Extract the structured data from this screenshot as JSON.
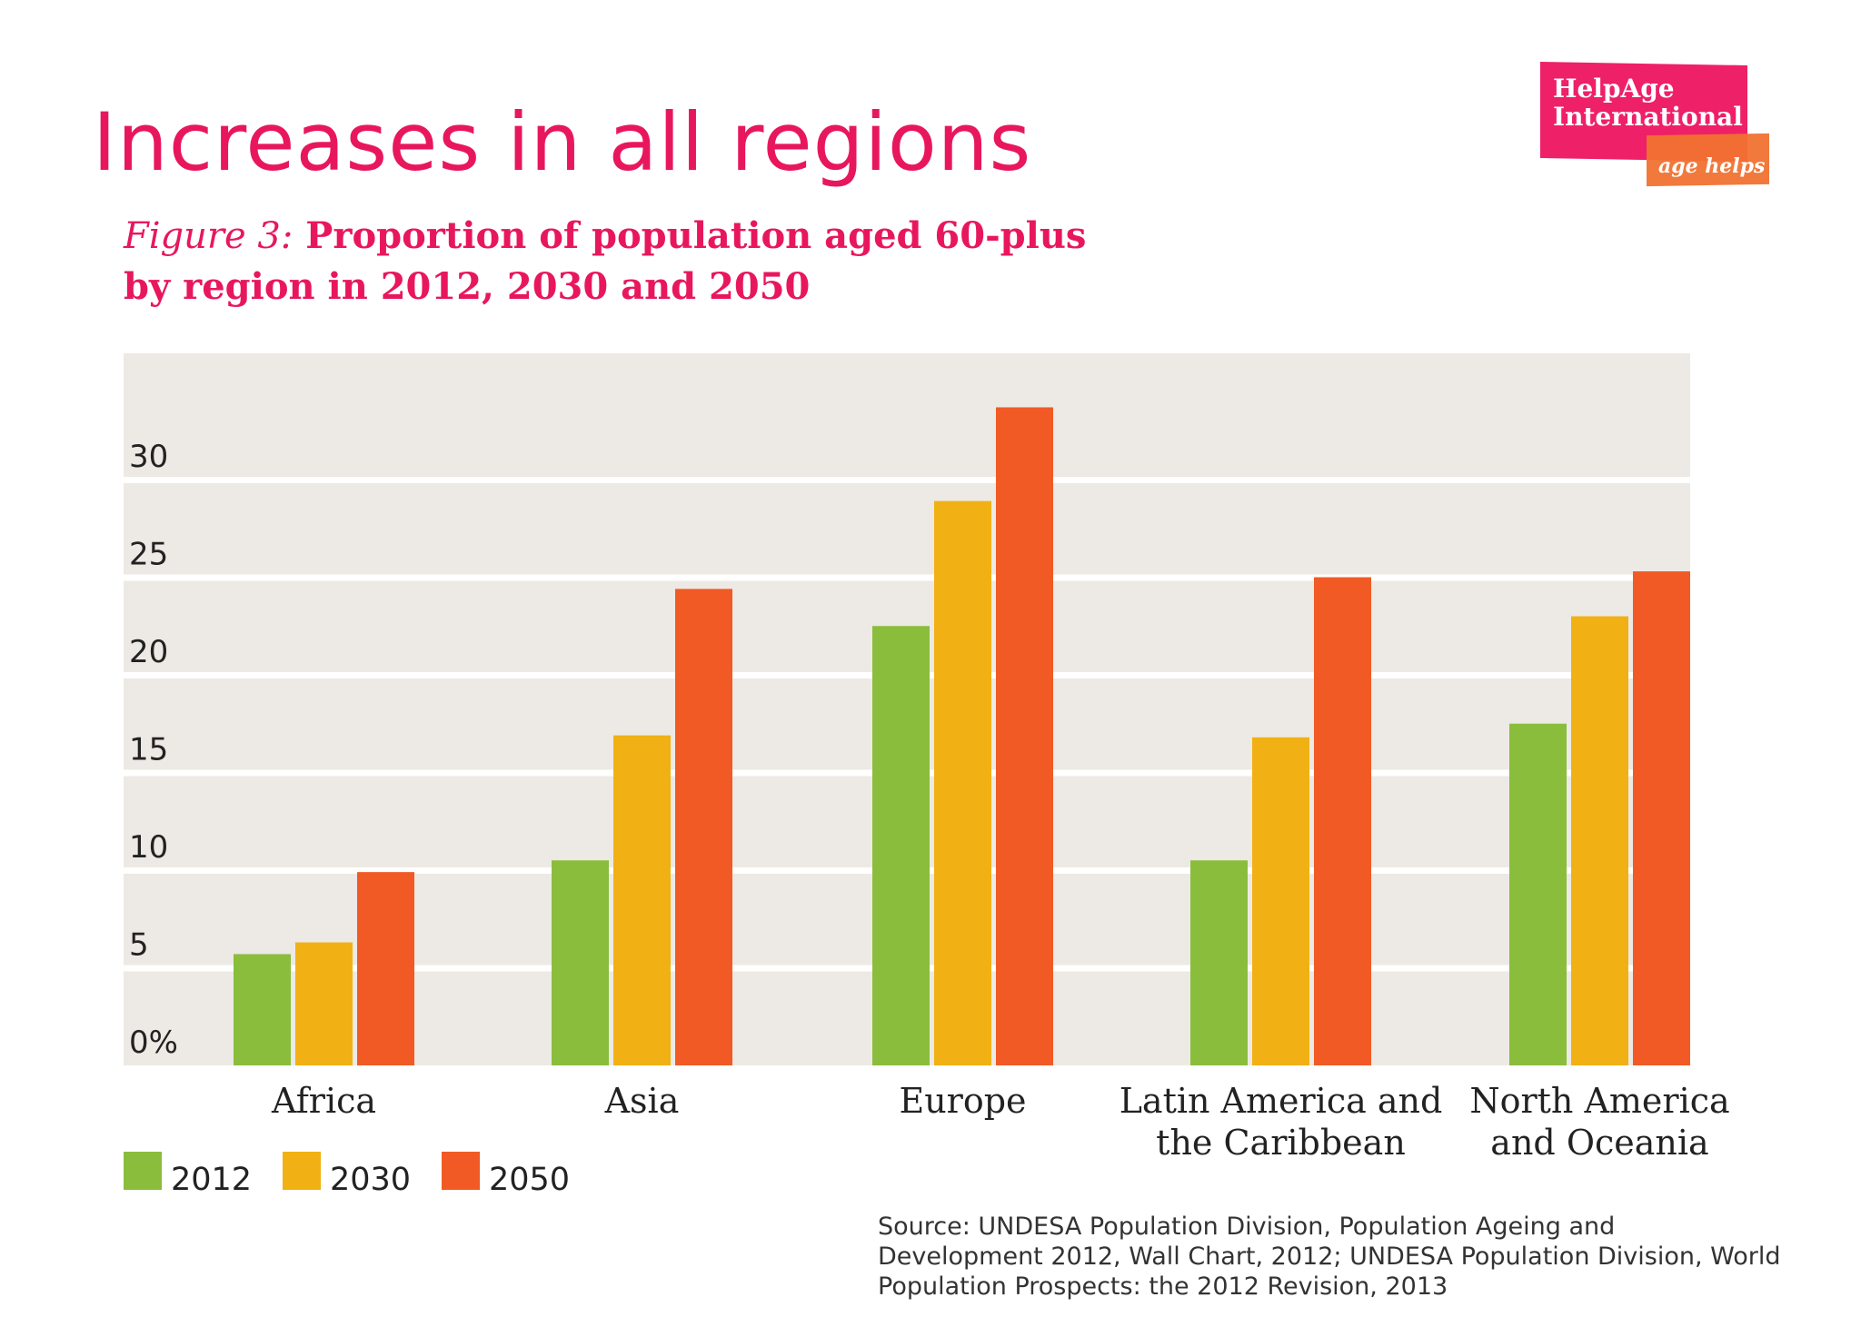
{
  "header": {
    "title": "Increases in all regions",
    "figure_label": "Figure 3:",
    "subtitle_line1": " Proportion of population aged 60-plus",
    "subtitle_line2": "by region in 2012, 2030 and 2050"
  },
  "logo": {
    "line1": "HelpAge",
    "line2": "International",
    "tagline": "age helps"
  },
  "source": "Source: UNDESA Population Division, Population Ageing and Development 2012, Wall Chart, 2012; UNDESA Population Division, World Population Prospects: the 2012 Revision, 2013",
  "colors": {
    "title": "#e8175d",
    "plot_bg": "#ede9e4",
    "grid": "#ffffff"
  },
  "chart_data": {
    "type": "bar",
    "categories": [
      "Africa",
      "Asia",
      "Europe",
      "Latin America and the Caribbean",
      "North America and Oceania"
    ],
    "category_lines": [
      [
        "Africa"
      ],
      [
        "Asia"
      ],
      [
        "Europe"
      ],
      [
        "Latin America and",
        "the Caribbean"
      ],
      [
        "North America",
        "and Oceania"
      ]
    ],
    "series": [
      {
        "name": "2012",
        "color": "#8abd3c",
        "values": [
          5.7,
          10.5,
          22.5,
          10.5,
          17.5
        ]
      },
      {
        "name": "2030",
        "color": "#f1b114",
        "values": [
          6.3,
          16.9,
          28.9,
          16.8,
          23.0
        ]
      },
      {
        "name": "2050",
        "color": "#f15a24",
        "values": [
          9.9,
          24.4,
          33.7,
          25.0,
          25.3
        ]
      }
    ],
    "ylim": [
      0,
      35
    ],
    "yticks": [
      0,
      5,
      10,
      15,
      20,
      25,
      30
    ],
    "ytick_labels": [
      "0%",
      "5",
      "10",
      "15",
      "20",
      "25",
      "30"
    ],
    "grid": true,
    "legend_position": "bottom-left"
  }
}
